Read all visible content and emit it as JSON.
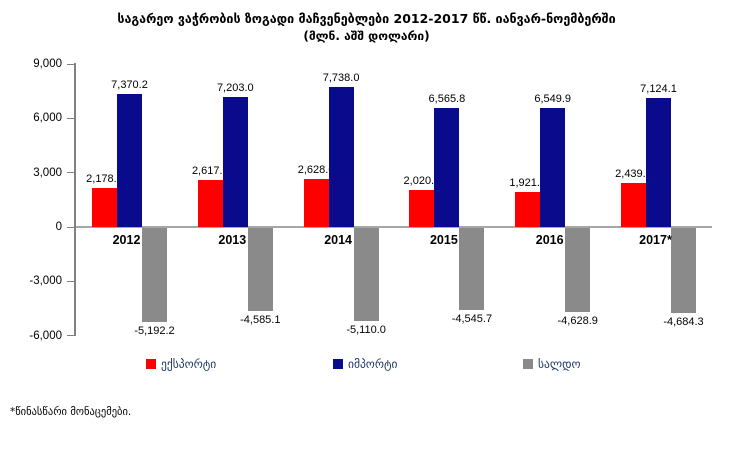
{
  "title": "საგარეო ვაჭრობის ზოგადი მაჩვენებლები 2012-2017 წწ. იანვარ-ნოემბერში",
  "subtitle": "(მლნ. აშშ დოლარი)",
  "footnote": "*წინასწარი მონაცემები.",
  "colors": {
    "export": "#fe0000",
    "import": "#0a0a8c",
    "balance": "#8a8a8a",
    "axis": "#808080",
    "zero_line": "#a6a6a6",
    "legend_text": "#1f3864",
    "label_text": "#000000"
  },
  "chart_data": {
    "type": "bar",
    "title": "საგარეო ვაჭრობის ზოგადი მაჩვენებლები 2012-2017 წწ. იანვარ-ნოემბერში",
    "subtitle": "(მლნ. აშშ დოლარი)",
    "categories": [
      "2012",
      "2013",
      "2014",
      "2015",
      "2016",
      "2017*"
    ],
    "series": [
      {
        "name": "ექსპორტი",
        "color_key": "export",
        "values": [
          2178.0,
          2617.9,
          2628.0,
          2020.1,
          1921.0,
          2439.7
        ],
        "value_labels": [
          "2,178.0",
          "2,617.9",
          "2,628.0",
          "2,020.1",
          "1,921.0",
          "2,439.7"
        ]
      },
      {
        "name": "იმპორტი",
        "color_key": "import",
        "values": [
          7370.2,
          7203.0,
          7738.0,
          6565.8,
          6549.9,
          7124.1
        ],
        "value_labels": [
          "7,370.2",
          "7,203.0",
          "7,738.0",
          "6,565.8",
          "6,549.9",
          "7,124.1"
        ]
      },
      {
        "name": "სალდო",
        "color_key": "balance",
        "values": [
          -5192.2,
          -4585.1,
          -5110.0,
          -4545.7,
          -4628.9,
          -4684.3
        ],
        "value_labels": [
          "-5,192.2",
          "-4,585.1",
          "-5,110.0",
          "-4,545.7",
          "-4,628.9",
          "-4,684.3"
        ]
      }
    ],
    "y_axis": {
      "tick_values": [
        9000,
        6000,
        3000,
        0,
        -3000,
        -6000
      ],
      "tick_labels": [
        "9,000",
        "6,000",
        "3,000",
        "0",
        "-3,000",
        "-6,000"
      ],
      "ylim": [
        -6000,
        9000
      ]
    },
    "grid": false,
    "legend_position": "bottom"
  }
}
